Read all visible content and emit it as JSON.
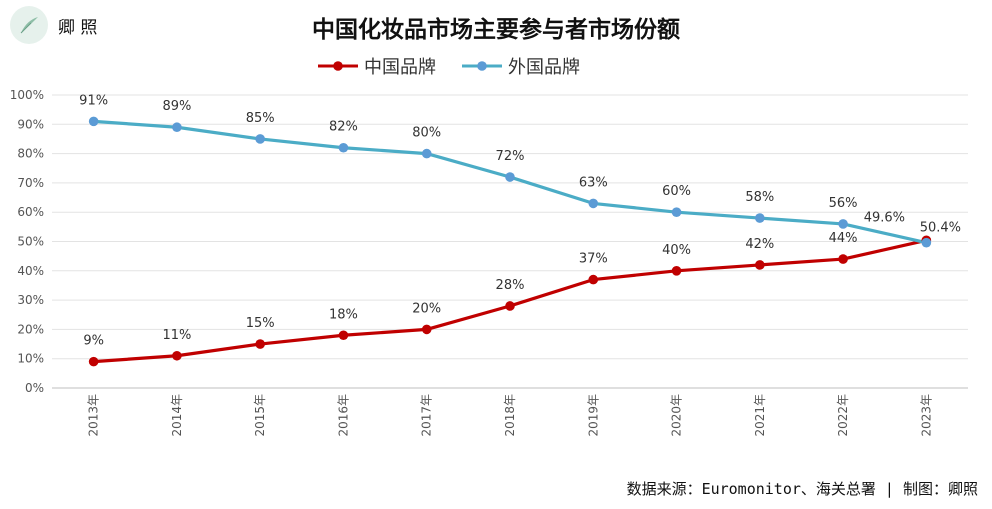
{
  "logo": {
    "name": "卿 照"
  },
  "source": "数据来源：Euromonitor、海关总署 | 制图：卿照",
  "colors": {
    "china": "#c00000",
    "foreign": "#4bacc6",
    "foreign_marker": "#5b9bd5"
  },
  "chart_data": {
    "type": "line",
    "title": "中国化妆品市场主要参与者市场份额",
    "categories": [
      "2013年",
      "2014年",
      "2015年",
      "2016年",
      "2017年",
      "2018年",
      "2019年",
      "2020年",
      "2021年",
      "2022年",
      "2023年"
    ],
    "series": [
      {
        "name": "中国品牌",
        "values": [
          9,
          11,
          15,
          18,
          20,
          28,
          37,
          40,
          42,
          44,
          50.4
        ],
        "labels": [
          "9%",
          "11%",
          "15%",
          "18%",
          "20%",
          "28%",
          "37%",
          "40%",
          "42%",
          "44%",
          "50.4%"
        ]
      },
      {
        "name": "外国品牌",
        "values": [
          91,
          89,
          85,
          82,
          80,
          72,
          63,
          60,
          58,
          56,
          49.6
        ],
        "labels": [
          "91%",
          "89%",
          "85%",
          "82%",
          "80%",
          "72%",
          "63%",
          "60%",
          "58%",
          "56%",
          "49.6%"
        ]
      }
    ],
    "yticks": [
      "0%",
      "10%",
      "20%",
      "30%",
      "40%",
      "50%",
      "60%",
      "70%",
      "80%",
      "90%",
      "100%"
    ],
    "ylim": [
      0,
      100
    ],
    "grid": true,
    "legend": "top-center"
  }
}
